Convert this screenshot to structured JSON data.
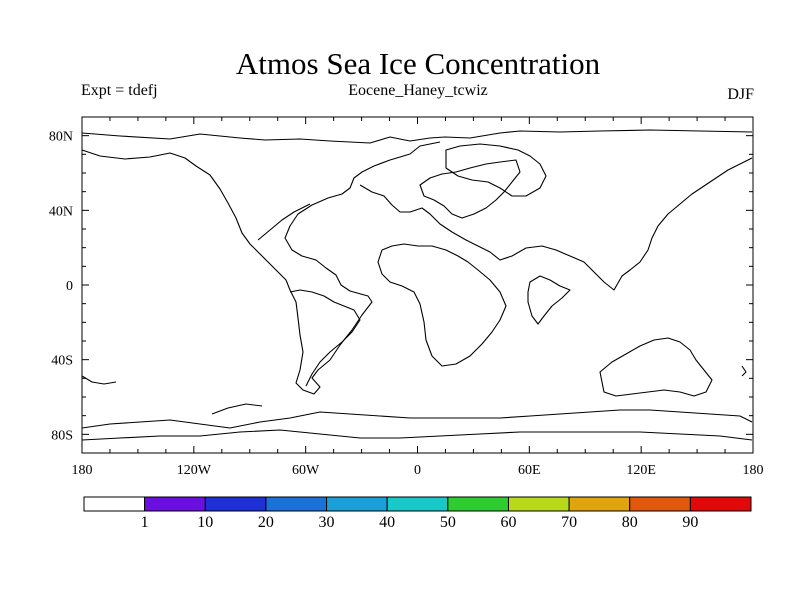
{
  "title": "Atmos Sea Ice Concentration",
  "left_string": "Expt = tdefj",
  "center_string": "Eocene_Haney_tcwiz",
  "right_string": "DJF",
  "map": {
    "projection": "cylindrical-equidistant",
    "lon_range": [
      -180,
      180
    ],
    "lat_range": [
      -90,
      90
    ],
    "lon_tick_labels": [
      "180",
      "120W",
      "60W",
      "0",
      "60E",
      "120E",
      "180"
    ],
    "lat_tick_labels": [
      "80N",
      "40N",
      "0",
      "40S",
      "80S"
    ],
    "coastline_color": "#000000",
    "sea_ice_field": "none shown (all areas below lowest contour)"
  },
  "colorbar": {
    "labels": [
      "1",
      "10",
      "20",
      "30",
      "40",
      "50",
      "60",
      "70",
      "80",
      "90"
    ],
    "colors": [
      "#ffffff",
      "#6a0fe0",
      "#1e2fd6",
      "#1a72d9",
      "#1a9fd8",
      "#18c8c8",
      "#2ecc2e",
      "#b8d81a",
      "#e0a50c",
      "#e2580c",
      "#e00808"
    ]
  }
}
